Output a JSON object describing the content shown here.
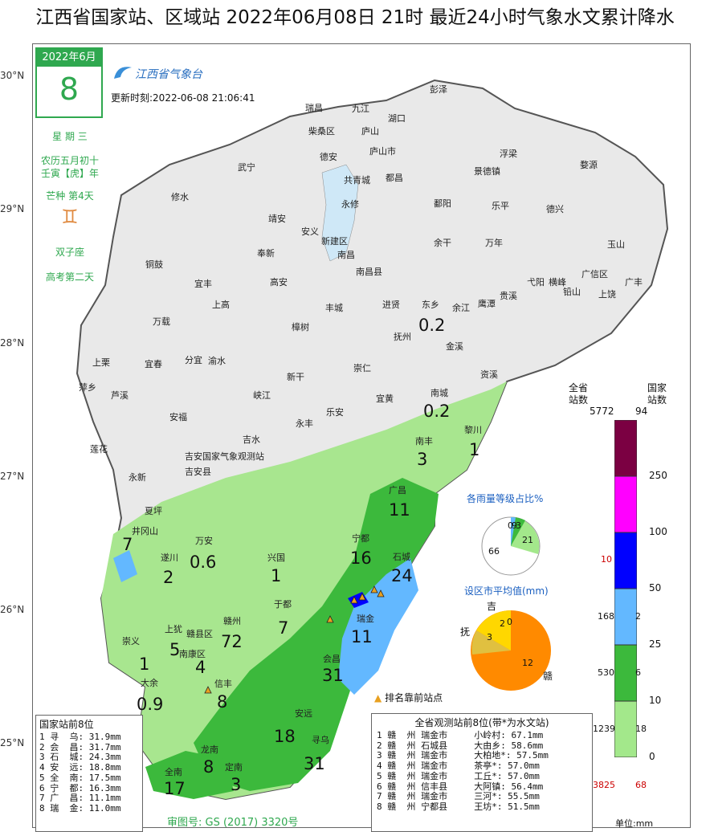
{
  "title": "江西省国家站、区域站    2022年06月08日 21时    最近24小时气象水文累计降水",
  "calendar": {
    "month": "2022年6月",
    "day": "8",
    "weekday": "星 期 三",
    "lunar": "农历五月初十",
    "ganzhi": "壬寅【虎】年",
    "solar_term": "芒种 第4天",
    "zodiac": "双子座",
    "event": "高考第二天"
  },
  "logo_text": "江西省气象台",
  "update_time": "更新时刻:2022-06-08 21:06:41",
  "latitudes": [
    "30°N",
    "29°N",
    "28°N",
    "27°N",
    "26°N",
    "25°N"
  ],
  "cities": [
    "瑞昌",
    "九江",
    "湖口",
    "彭泽",
    "柴桑区",
    "庐山",
    "德安",
    "庐山市",
    "浮梁",
    "婺源",
    "武宁",
    "共青城",
    "都昌",
    "景德镇",
    "修水",
    "永修",
    "鄱阳",
    "乐平",
    "德兴",
    "靖安",
    "安义",
    "新建区",
    "余干",
    "万年",
    "玉山",
    "奉新",
    "南昌",
    "南昌县",
    "铜鼓",
    "宜丰",
    "高安",
    "横峰",
    "广信区",
    "广丰",
    "上高",
    "丰城",
    "东乡",
    "进贤",
    "余江",
    "鹰潭",
    "贵溪",
    "弋阳",
    "铅山",
    "上饶",
    "万载",
    "樟树",
    "抚州",
    "金溪",
    "资溪",
    "上栗",
    "宜春",
    "分宜",
    "渝水",
    "崇仁",
    "芦溪",
    "萍乡",
    "新干",
    "南城",
    "黎川",
    "安福",
    "峡江",
    "乐安",
    "宜黄",
    "永丰",
    "南丰",
    "莲花",
    "吉水",
    "吉安国家气象观测站",
    "吉安县",
    "永新",
    "井冈山",
    "夏坪",
    "广昌",
    "宁都",
    "石城",
    "遂川",
    "万安",
    "兴国",
    "于都",
    "上犹",
    "赣县区",
    "赣州",
    "瑞金",
    "崇义",
    "南康区",
    "会昌",
    "大余",
    "信丰",
    "安远",
    "寻乌",
    "龙南",
    "定南",
    "全南"
  ],
  "rain_values": [
    "0.2",
    "0.2",
    "1",
    "3",
    "11",
    "16",
    "24",
    "7",
    "2",
    "0.6",
    "1",
    "7",
    "72",
    "5",
    "4",
    "11",
    "1",
    "31",
    "8",
    "0.9",
    "18",
    "31",
    "8",
    "3",
    "17"
  ],
  "pie_rank": {
    "title": "各雨量等级占比%",
    "labels": [
      "0",
      "3",
      "9",
      "21",
      "66"
    ]
  },
  "pie_city": {
    "title": "设区市平均值(mm)",
    "labels": [
      "吉",
      "抚",
      "赣",
      "2",
      "0",
      "3",
      "12"
    ]
  },
  "legend": {
    "header_left": "全省\n站数",
    "header_right": "国家\n站数",
    "top_left": "5772",
    "top_right": "94",
    "breaks": [
      "250",
      "100",
      "50",
      "25",
      "10",
      "0"
    ],
    "left_counts": [
      "10",
      "168",
      "530",
      "1239",
      "3825"
    ],
    "right_counts": [
      "2",
      "6",
      "18",
      "68"
    ],
    "unit": "单位:mm",
    "colors": [
      "#7b0042",
      "#ff00ff",
      "#0000ff",
      "#63b8ff",
      "#3cb93c",
      "#a3e88b",
      "#ffffff"
    ]
  },
  "marker_note": "排名靠前站点",
  "national_top8": {
    "title": "国家站前8位",
    "rows": [
      "1 寻  乌: 31.9mm",
      "2 会  昌: 31.7mm",
      "3 石  城: 24.3mm",
      "4 安  远: 18.8mm",
      "5 全  南: 17.5mm",
      "6 宁  都: 16.3mm",
      "7 广  昌: 11.1mm",
      "8 瑞  金: 11.0mm"
    ]
  },
  "all_top8": {
    "title": "全省观测站前8位(带*为水文站)",
    "rows": [
      "1 赣  州 瑞金市     小岭村: 67.1mm",
      "2 赣  州 石城县     大由乡: 58.6mm",
      "3 赣  州 瑞金市     大柏地*: 57.5mm",
      "4 赣  州 瑞金市     茶亭*: 57.0mm",
      "5 赣  州 瑞金市     工丘*: 57.0mm",
      "6 赣  州 信丰县     大阿镇: 56.4mm",
      "7 赣  州 瑞金市     三河*: 55.5mm",
      "8 赣  州 宁都县     王坊*: 51.5mm"
    ]
  },
  "review_no": "审图号: GS (2017) 3320号"
}
